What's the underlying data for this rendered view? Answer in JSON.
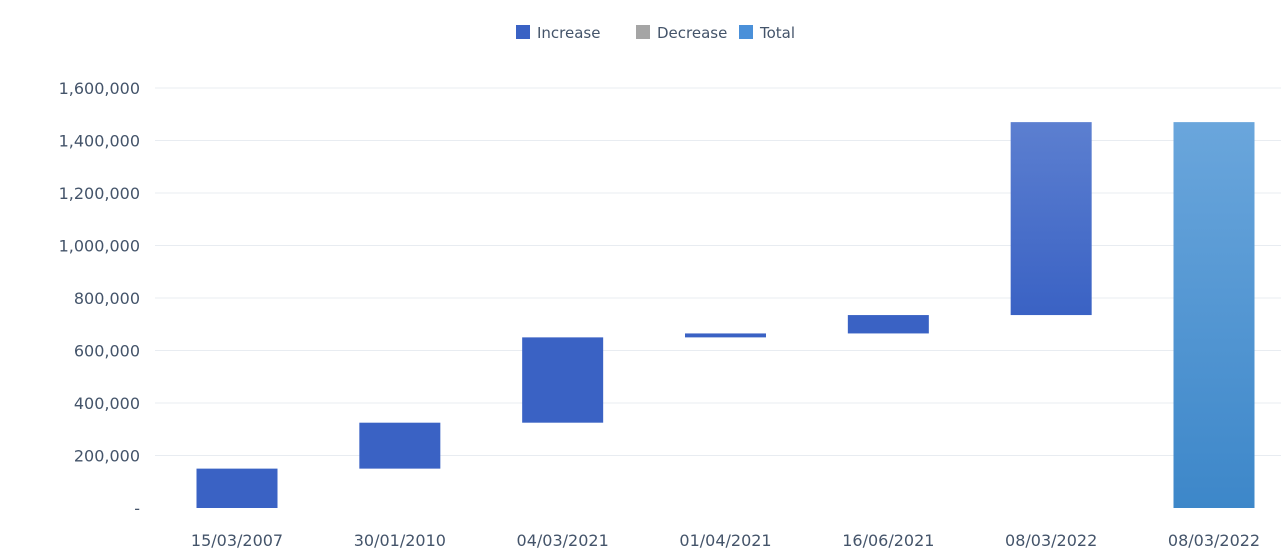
{
  "chart_data": {
    "type": "waterfall",
    "title": "",
    "xlabel": "",
    "ylabel": "",
    "categories": [
      "15/03/2007",
      "30/01/2010",
      "04/03/2021",
      "01/04/2021",
      "16/06/2021",
      "08/03/2022",
      "08/03/2022"
    ],
    "bars": [
      {
        "category": "15/03/2007",
        "kind": "increase",
        "start": 0,
        "end": 150000
      },
      {
        "category": "30/01/2010",
        "kind": "increase",
        "start": 150000,
        "end": 325000
      },
      {
        "category": "04/03/2021",
        "kind": "increase",
        "start": 325000,
        "end": 650000
      },
      {
        "category": "01/04/2021",
        "kind": "increase",
        "start": 650000,
        "end": 665000
      },
      {
        "category": "16/06/2021",
        "kind": "increase",
        "start": 665000,
        "end": 735000
      },
      {
        "category": "08/03/2022",
        "kind": "increase",
        "start": 735000,
        "end": 1470000
      },
      {
        "category": "08/03/2022",
        "kind": "total",
        "start": 0,
        "end": 1470000
      }
    ],
    "y_ticks": [
      0,
      200000,
      400000,
      600000,
      800000,
      1000000,
      1200000,
      1400000,
      1600000
    ],
    "y_tick_labels": [
      "-",
      "200,000",
      "400,000",
      "600,000",
      "800,000",
      "1,000,000",
      "1,200,000",
      "1,400,000",
      "1,600,000"
    ],
    "ylim": [
      0,
      1600000
    ],
    "grid": true,
    "legend_position": "top-center",
    "legend": [
      {
        "key": "increase",
        "label": "Increase",
        "color": "#3a62c4"
      },
      {
        "key": "decrease",
        "label": "Decrease",
        "color": "#a5a5a5"
      },
      {
        "key": "total",
        "label": "Total",
        "color": "#4a90d9"
      }
    ],
    "colors": {
      "increase": "#3a62c4",
      "increase_light": "#5c7fd0",
      "total_top": "#6aa6dc",
      "total_bottom": "#3d87c9",
      "decrease": "#a5a5a5"
    }
  }
}
